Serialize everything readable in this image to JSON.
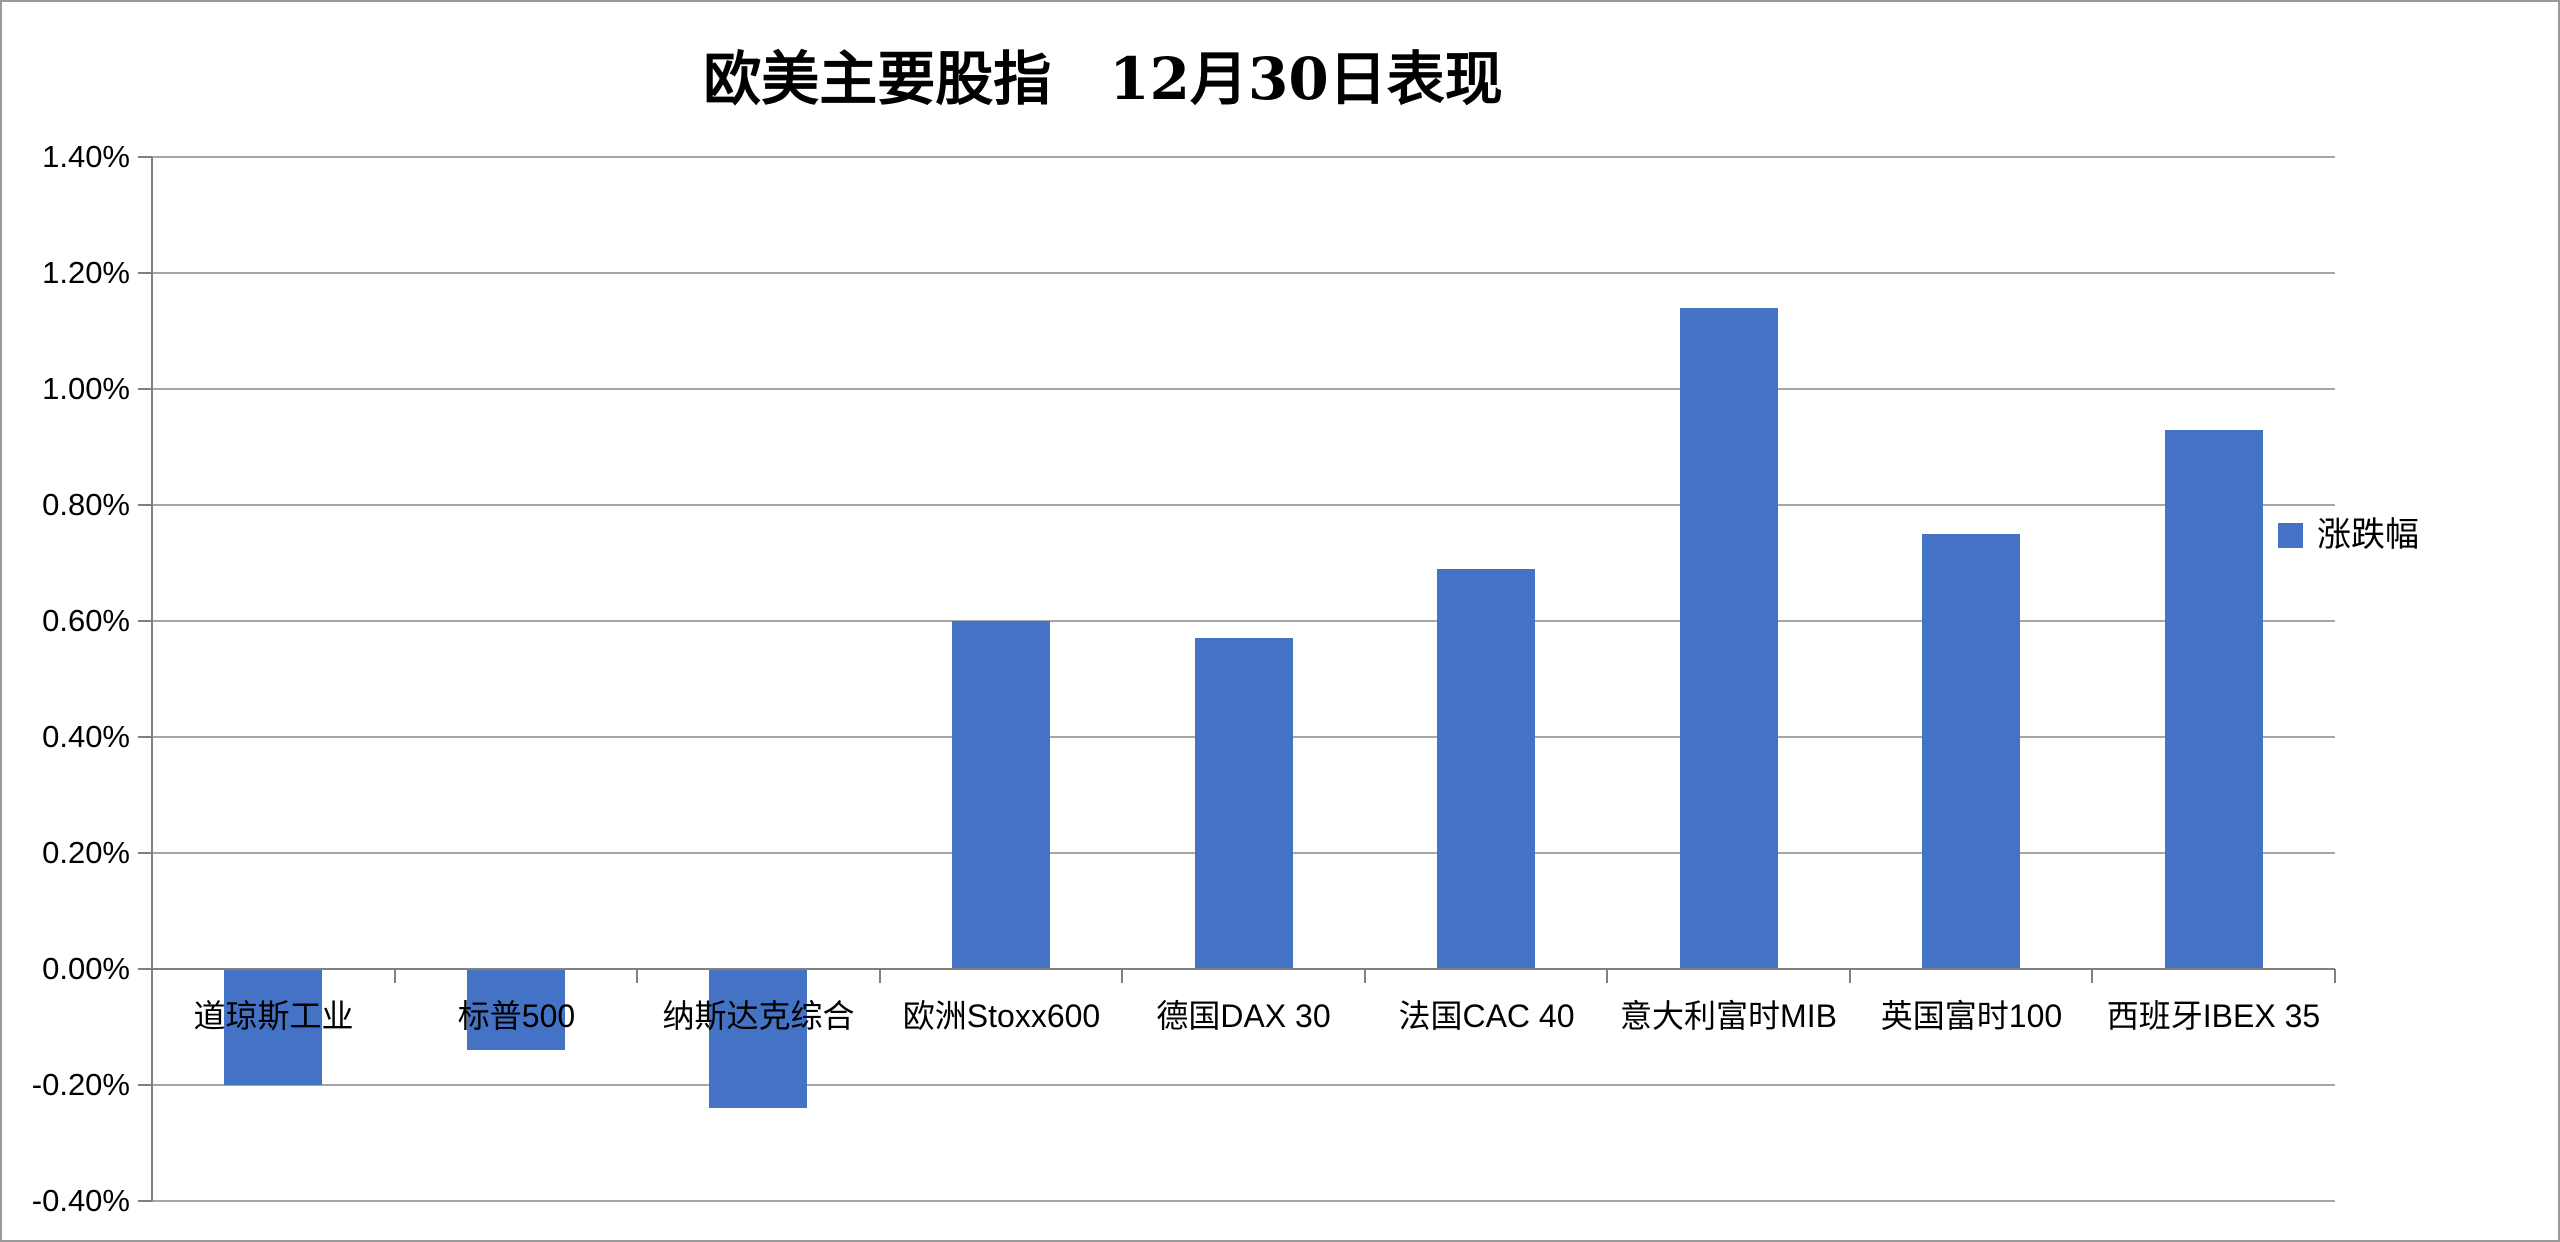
{
  "title": "欧美主要股指　12月30日表现",
  "legend": {
    "label": "涨跌幅"
  },
  "colors": {
    "bar": "#4472C4",
    "gridline": "#A6A6A6",
    "axis": "#808080",
    "border": "#999999",
    "text": "#000000"
  },
  "chart_data": {
    "type": "bar",
    "title": "欧美主要股指　12月30日表现",
    "categories": [
      "道琼斯工业",
      "标普500",
      "纳斯达克综合",
      "欧洲Stoxx600",
      "德国DAX 30",
      "法国CAC 40",
      "意大利富时MIB",
      "英国富时100",
      "西班牙IBEX 35"
    ],
    "series": [
      {
        "name": "涨跌幅",
        "values": [
          -0.2,
          -0.14,
          -0.24,
          0.6,
          0.57,
          0.69,
          1.14,
          0.75,
          0.93
        ]
      }
    ],
    "unit": "%",
    "xlabel": "",
    "ylabel": "",
    "ylim": [
      -0.4,
      1.4
    ],
    "ytick_step": 0.2,
    "ytick_labels": [
      "1.40%",
      "1.20%",
      "1.00%",
      "0.80%",
      "0.60%",
      "0.40%",
      "0.20%",
      "0.00%",
      "-0.20%",
      "-0.40%"
    ],
    "grid": true,
    "legend_position": "right-middle",
    "bar_color": "#4472C4"
  }
}
